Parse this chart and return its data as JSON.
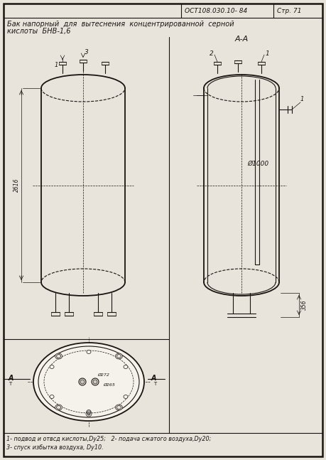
{
  "bg_color": "#e8e4dc",
  "paper_color": "#ddd9d0",
  "line_color": "#1a1410",
  "header_std": "ОСТ108.030.10- 84",
  "header_page": "Стр. 71",
  "title_line1": "Бак напорный  для  вытеснения  концентрированной  серной",
  "title_line2": "кислоты  БНВ-1,6",
  "section_label": "А-А",
  "dim_height": "2616",
  "dim_diam": "Ø1000",
  "dim_leg": "356",
  "legend_line1": "1- подвод и отвсд кислоты,Dy25;   2- подача сжатого воздуха,Dy20;",
  "legend_line2": "3- спуск избытка воздуха, Dy10."
}
